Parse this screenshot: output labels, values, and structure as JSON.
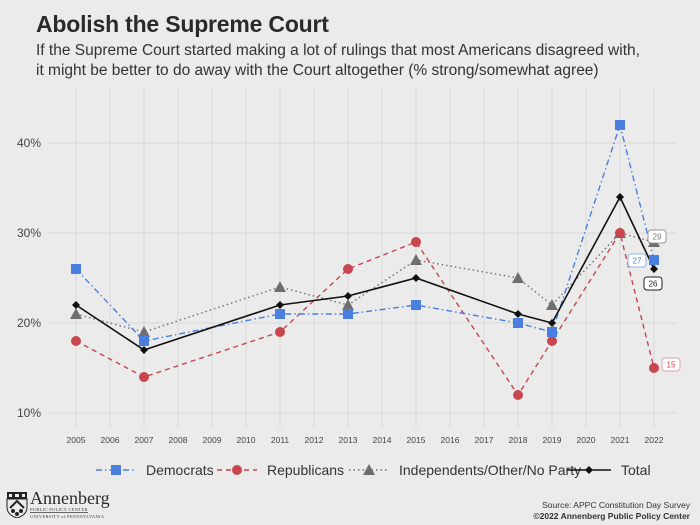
{
  "header": {
    "title": "Abolish the Supreme Court",
    "subtitle_line1": "If the Supreme Court started making a lot of rulings that most Americans disagreed with,",
    "subtitle_line2": "it might be better to do away with the Court altogether (% strong/somewhat agree)"
  },
  "footer": {
    "source": "Source: APPC Constitution Day Survey",
    "copyright": "©2022 Annenberg Public Policy Center",
    "logo_name": "Annenberg",
    "logo_sub1": "PUBLIC POLICY CENTER",
    "logo_sub2": "UNIVERSITY of PENNSYLVANIA"
  },
  "chart_data": {
    "type": "line",
    "title": "Abolish the Supreme Court",
    "xlabel": "",
    "ylabel": "",
    "x_ticks": [
      "2005",
      "2006",
      "2007",
      "2008",
      "2009",
      "2010",
      "2011",
      "2012",
      "2013",
      "2014",
      "2015",
      "2016",
      "2017",
      "2018",
      "2019",
      "2020",
      "2021",
      "2022"
    ],
    "y_ticks": [
      10,
      20,
      30,
      40
    ],
    "y_tick_labels": [
      "10%",
      "20%",
      "30%",
      "40%"
    ],
    "ylim": [
      7.5,
      45
    ],
    "xlim": [
      2004.5,
      2022.5
    ],
    "grid": true,
    "legend_position": "bottom",
    "series": [
      {
        "name": "Democrats",
        "color": "#4a7fe0",
        "marker": "square",
        "line_style": "dashdot",
        "x": [
          2005,
          2007,
          2011,
          2013,
          2015,
          2018,
          2019,
          2021,
          2022
        ],
        "values": [
          26,
          18,
          21,
          21,
          22,
          20,
          19,
          42,
          27
        ],
        "end_label": "27"
      },
      {
        "name": "Republicans",
        "color": "#c8464d",
        "marker": "circle",
        "line_style": "dashed",
        "x": [
          2005,
          2007,
          2011,
          2013,
          2015,
          2018,
          2019,
          2021,
          2022
        ],
        "values": [
          18,
          14,
          19,
          26,
          29,
          12,
          18,
          30,
          15
        ],
        "end_label": "15"
      },
      {
        "name": "Independents/Other/No Party",
        "color": "#6e6e6e",
        "marker": "triangle",
        "line_style": "dotted",
        "x": [
          2005,
          2007,
          2011,
          2013,
          2015,
          2018,
          2019,
          2021,
          2022
        ],
        "values": [
          21,
          19,
          24,
          22,
          27,
          25,
          22,
          30,
          29
        ],
        "end_label": "29"
      },
      {
        "name": "Total",
        "color": "#111111",
        "marker": "diamond",
        "line_style": "solid",
        "x": [
          2005,
          2007,
          2011,
          2013,
          2015,
          2018,
          2019,
          2021,
          2022
        ],
        "values": [
          22,
          17,
          22,
          23,
          25,
          21,
          20,
          34,
          26
        ],
        "end_label": "26"
      }
    ]
  }
}
